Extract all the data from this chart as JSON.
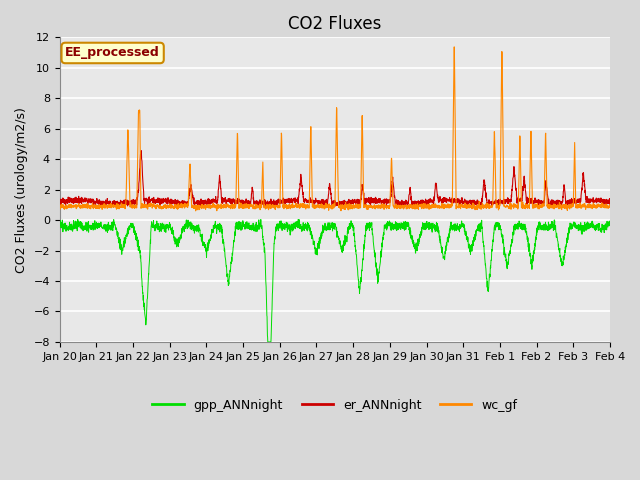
{
  "title": "CO2 Fluxes",
  "ylabel": "CO2 Fluxes (urology/m2/s)",
  "ylim": [
    -8,
    12
  ],
  "yticks": [
    -8,
    -6,
    -4,
    -2,
    0,
    2,
    4,
    6,
    8,
    10,
    12
  ],
  "plot_bg_color": "#e8e8e8",
  "grid_color": "#ffffff",
  "annotation_text": "EE_processed",
  "annotation_bg": "#ffffcc",
  "annotation_border": "#cc8800",
  "legend_labels": [
    "gpp_ANNnight",
    "er_ANNnight",
    "wc_gf"
  ],
  "line_colors": [
    "#00dd00",
    "#cc0000",
    "#ff8800"
  ],
  "n_points": 3000,
  "xtick_labels": [
    "Jan 20",
    "Jan 21",
    "Jan 22",
    "Jan 23",
    "Jan 24",
    "Jan 25",
    "Jan 26",
    "Jan 27",
    "Jan 28",
    "Jan 29",
    "Jan 30",
    "Jan 31",
    "Feb 1",
    "Feb 2",
    "Feb 3",
    "Feb 4"
  ],
  "title_fontsize": 12,
  "label_fontsize": 9,
  "tick_fontsize": 8,
  "legend_fontsize": 9
}
